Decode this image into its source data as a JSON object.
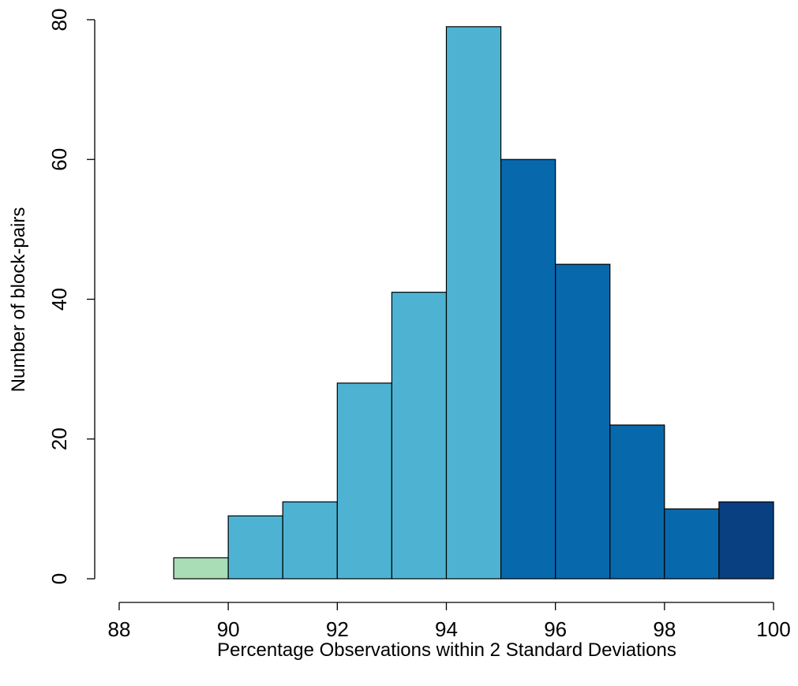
{
  "chart_data": {
    "type": "bar",
    "title": "",
    "xlabel": "Percentage Observations within 2 Standard Deviations",
    "ylabel": "Number of block-pairs",
    "xlim": [
      88,
      100
    ],
    "ylim": [
      0,
      80
    ],
    "x_ticks": [
      "88",
      "90",
      "92",
      "94",
      "96",
      "98",
      "100"
    ],
    "y_ticks": [
      "0",
      "20",
      "40",
      "60",
      "80"
    ],
    "grid": false,
    "bins": [
      {
        "start": 89,
        "end": 90,
        "count": 3,
        "color": "#a8ddb5"
      },
      {
        "start": 90,
        "end": 91,
        "count": 9,
        "color": "#4eb3d3"
      },
      {
        "start": 91,
        "end": 92,
        "count": 11,
        "color": "#4eb3d3"
      },
      {
        "start": 92,
        "end": 93,
        "count": 28,
        "color": "#4eb3d3"
      },
      {
        "start": 93,
        "end": 94,
        "count": 41,
        "color": "#4eb3d3"
      },
      {
        "start": 94,
        "end": 95,
        "count": 79,
        "color": "#4eb3d3"
      },
      {
        "start": 95,
        "end": 96,
        "count": 60,
        "color": "#0868ac"
      },
      {
        "start": 96,
        "end": 97,
        "count": 45,
        "color": "#0868ac"
      },
      {
        "start": 97,
        "end": 98,
        "count": 22,
        "color": "#0868ac"
      },
      {
        "start": 98,
        "end": 99,
        "count": 10,
        "color": "#0868ac"
      },
      {
        "start": 99,
        "end": 100,
        "count": 11,
        "color": "#084081"
      }
    ]
  }
}
